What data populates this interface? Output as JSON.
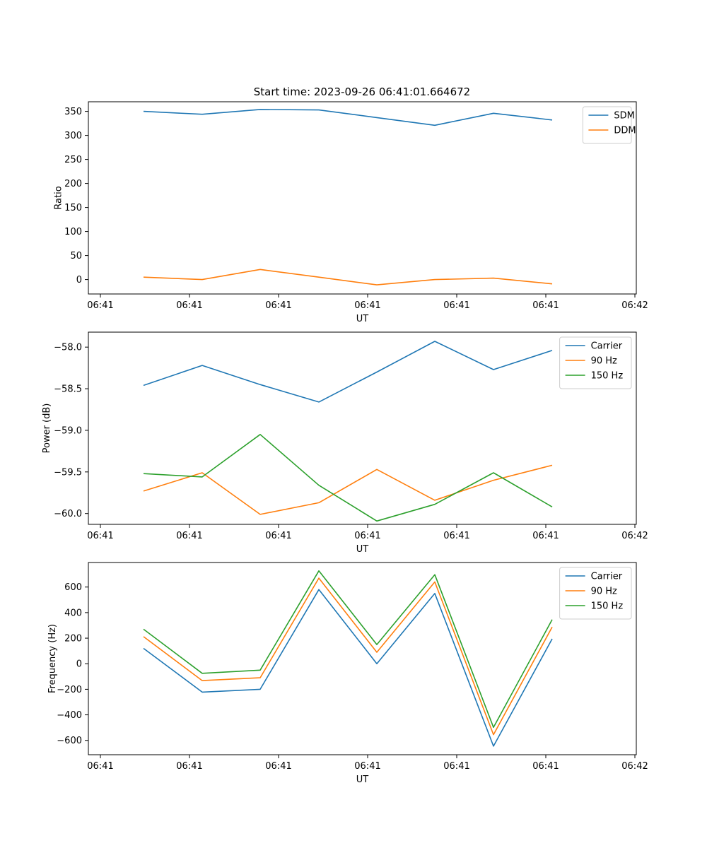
{
  "colors": {
    "blue": "#1f77b4",
    "orange": "#ff7f0e",
    "green": "#2ca02c"
  },
  "chart_data": [
    {
      "type": "line",
      "title": "Start time: 2023-09-26 06:41:01.664672",
      "xlabel": "UT",
      "ylabel": "Ratio",
      "xticks": [
        "06:41",
        "06:41",
        "06:41",
        "06:41",
        "06:41",
        "06:41",
        "06:42"
      ],
      "yticks": [
        "0",
        "50",
        "100",
        "150",
        "200",
        "250",
        "300",
        "350"
      ],
      "ylim": [
        -30,
        370
      ],
      "legend": "top-right",
      "series": [
        {
          "name": "SDM",
          "color": "#1f77b4",
          "values": [
            350,
            344,
            354,
            353,
            337,
            321,
            346,
            332
          ]
        },
        {
          "name": "DDM",
          "color": "#ff7f0e",
          "values": [
            5,
            0,
            21,
            5,
            -11,
            0,
            3,
            -9
          ]
        }
      ]
    },
    {
      "type": "line",
      "title": "",
      "xlabel": "UT",
      "ylabel": "Power (dB)",
      "xticks": [
        "06:41",
        "06:41",
        "06:41",
        "06:41",
        "06:41",
        "06:41",
        "06:42"
      ],
      "yticks": [
        "−60.0",
        "−59.5",
        "−59.0",
        "−58.5",
        "−58.0"
      ],
      "ylim": [
        -60.13,
        -57.82
      ],
      "legend": "top-right",
      "series": [
        {
          "name": "Carrier",
          "color": "#1f77b4",
          "values": [
            -58.46,
            -58.22,
            -58.45,
            -58.66,
            -58.3,
            -57.93,
            -58.27,
            -58.04
          ]
        },
        {
          "name": "90 Hz",
          "color": "#ff7f0e",
          "values": [
            -59.73,
            -59.51,
            -60.01,
            -59.87,
            -59.47,
            -59.84,
            -59.6,
            -59.42
          ]
        },
        {
          "name": "150 Hz",
          "color": "#2ca02c",
          "values": [
            -59.52,
            -59.56,
            -59.05,
            -59.66,
            -60.09,
            -59.89,
            -59.51,
            -59.92
          ]
        }
      ]
    },
    {
      "type": "line",
      "title": "",
      "xlabel": "UT",
      "ylabel": "Frequency (Hz)",
      "xticks": [
        "06:41",
        "06:41",
        "06:41",
        "06:41",
        "06:41",
        "06:41",
        "06:42"
      ],
      "yticks": [
        "−600",
        "−400",
        "−200",
        "0",
        "200",
        "400",
        "600"
      ],
      "ylim": [
        -712,
        792
      ],
      "legend": "top-right",
      "series": [
        {
          "name": "Carrier",
          "color": "#1f77b4",
          "values": [
            120,
            -222,
            -200,
            580,
            0,
            550,
            -645,
            195
          ]
        },
        {
          "name": "90 Hz",
          "color": "#ff7f0e",
          "values": [
            212,
            -132,
            -110,
            670,
            90,
            640,
            -555,
            287
          ]
        },
        {
          "name": "150 Hz",
          "color": "#2ca02c",
          "values": [
            270,
            -75,
            -50,
            727,
            150,
            697,
            -498,
            345
          ]
        }
      ]
    }
  ]
}
